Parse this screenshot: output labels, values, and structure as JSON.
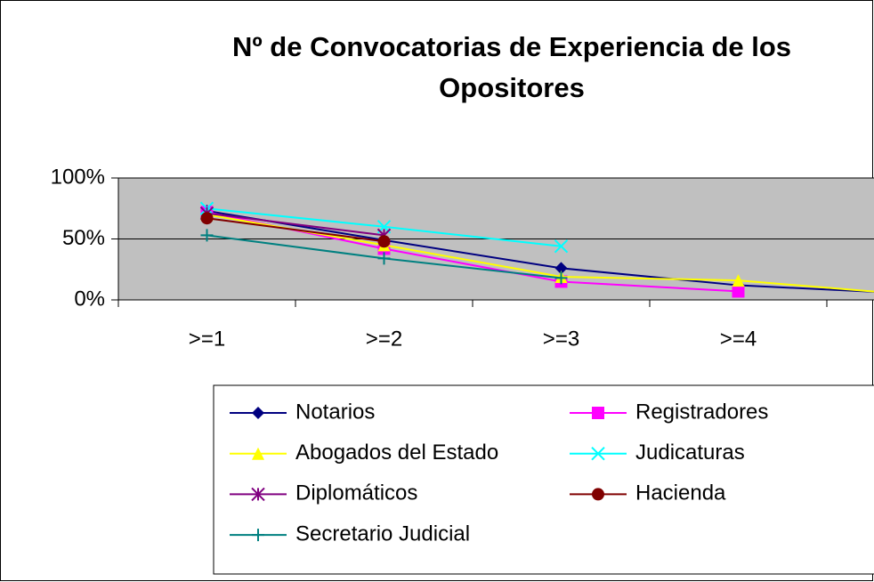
{
  "chart_data": {
    "type": "line",
    "title": "Nº de Convocatorias de Experiencia de los Opositores",
    "categories": [
      ">=1",
      ">=2",
      ">=3",
      ">=4",
      null
    ],
    "ylim": [
      0,
      100
    ],
    "yticks": [
      {
        "value": 0,
        "label": "0%"
      },
      {
        "value": 50,
        "label": "50%"
      },
      {
        "value": 100,
        "label": "100%"
      }
    ],
    "grid": true,
    "series": [
      {
        "name": "Notarios",
        "color": "#000080",
        "marker": "diamond",
        "values": [
          73,
          49,
          26,
          12,
          5
        ]
      },
      {
        "name": "Registradores",
        "color": "#ff00ff",
        "marker": "square",
        "values": [
          72,
          42,
          15,
          7,
          null
        ]
      },
      {
        "name": "Abogados del Estado",
        "color": "#ffff00",
        "marker": "triangle",
        "values": [
          70,
          45,
          19,
          16,
          4
        ]
      },
      {
        "name": "Judicaturas",
        "color": "#00ffff",
        "marker": "x",
        "values": [
          75,
          60,
          44,
          null,
          null
        ]
      },
      {
        "name": "Diplomáticos",
        "color": "#800080",
        "marker": "star",
        "values": [
          71,
          53,
          null,
          null,
          null
        ]
      },
      {
        "name": "Hacienda",
        "color": "#800000",
        "marker": "circle",
        "values": [
          67,
          48,
          null,
          null,
          null
        ]
      },
      {
        "name": "Secretario Judicial",
        "color": "#008080",
        "marker": "plus",
        "values": [
          53,
          34,
          18,
          null,
          null
        ]
      }
    ]
  }
}
